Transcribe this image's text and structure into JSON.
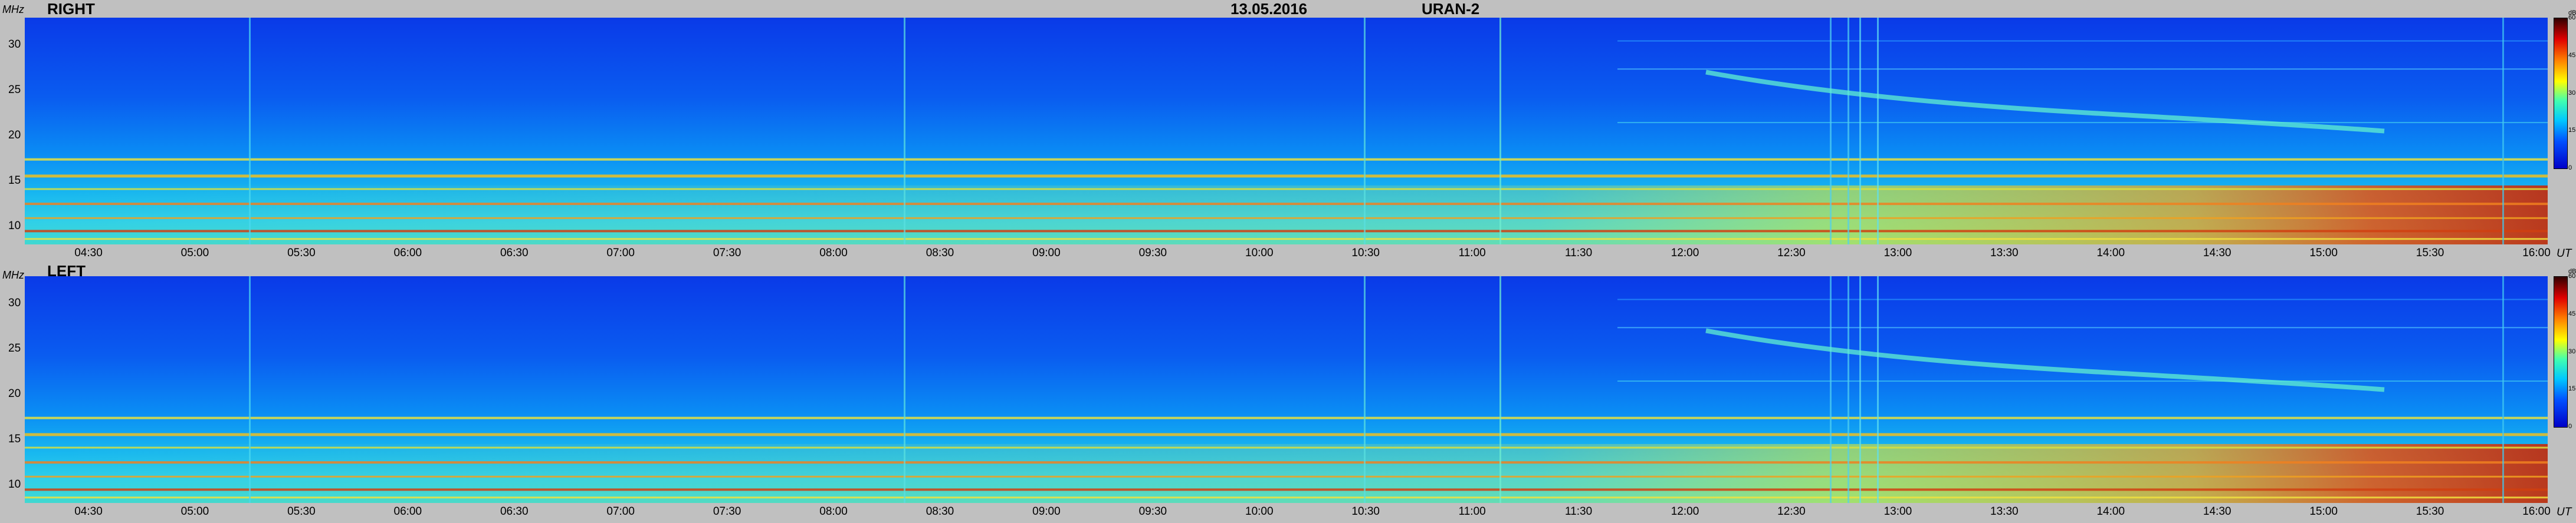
{
  "header": {
    "date": "13.05.2016",
    "instrument": "URAN-2"
  },
  "axis_unit": "MHz",
  "time_unit": "UT",
  "colorbar_unit": "dB",
  "chart_data": [
    {
      "type": "heatmap",
      "title": "RIGHT",
      "ylabel": "MHz",
      "xlabel": "UT",
      "ylim": [
        8,
        33
      ],
      "yticks": [
        "30",
        "25",
        "20",
        "15",
        "10"
      ],
      "xticks": [
        "04:30",
        "05:00",
        "05:30",
        "06:00",
        "06:30",
        "07:00",
        "07:30",
        "08:00",
        "08:30",
        "09:00",
        "09:30",
        "10:00",
        "10:30",
        "11:00",
        "11:30",
        "12:00",
        "12:30",
        "13:00",
        "13:30",
        "14:00",
        "14:30",
        "15:00",
        "15:30",
        "16:00"
      ],
      "colorbar": {
        "range": [
          0,
          60
        ],
        "ticks": [
          "60",
          "45",
          "30",
          "15",
          "0"
        ]
      }
    },
    {
      "type": "heatmap",
      "title": "LEFT",
      "ylabel": "MHz",
      "xlabel": "UT",
      "ylim": [
        8,
        33
      ],
      "yticks": [
        "30",
        "25",
        "20",
        "15",
        "10"
      ],
      "xticks": [
        "04:30",
        "05:00",
        "05:30",
        "06:00",
        "06:30",
        "07:00",
        "07:30",
        "08:00",
        "08:30",
        "09:00",
        "09:30",
        "10:00",
        "10:30",
        "11:00",
        "11:30",
        "12:00",
        "12:30",
        "13:00",
        "13:30",
        "14:00",
        "14:30",
        "15:00",
        "15:30",
        "16:00"
      ],
      "colorbar": {
        "range": [
          0,
          60
        ],
        "ticks": [
          "60",
          "45",
          "30",
          "15",
          "0"
        ]
      }
    }
  ]
}
